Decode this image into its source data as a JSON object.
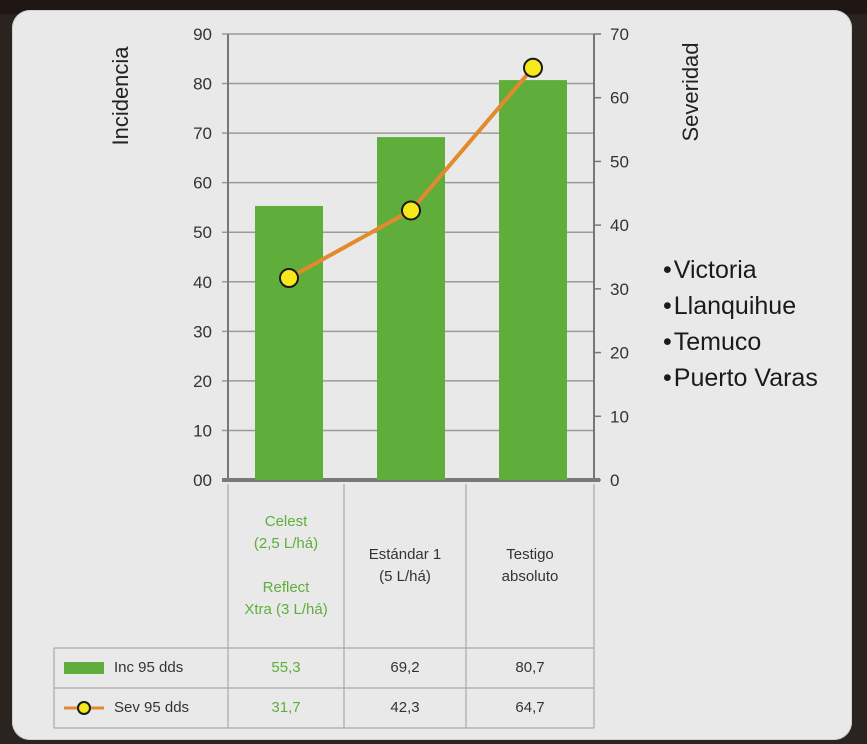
{
  "chart_data": {
    "type": "bar",
    "categories": [
      [
        "Celest",
        "(2,5 L/há)",
        "",
        "Reflect",
        "Xtra (3 L/há)"
      ],
      [
        "Estándar 1",
        "(5 L/há)"
      ],
      [
        "Testigo",
        "absoluto"
      ]
    ],
    "ylabel": "Incidencia",
    "y2label": "Severidad",
    "ylim": [
      0,
      90
    ],
    "y2lim": [
      0,
      70
    ],
    "yticks": [
      "00",
      "10",
      "20",
      "30",
      "40",
      "50",
      "60",
      "70",
      "80",
      "90"
    ],
    "y2ticks": [
      "0",
      "10",
      "20",
      "30",
      "40",
      "50",
      "60",
      "70"
    ],
    "grid": true,
    "series": [
      {
        "name": "Inc 95 dds",
        "type": "bar",
        "axis": "left",
        "color": "#5fae3b",
        "values": [
          55.3,
          69.2,
          80.7
        ],
        "labels": [
          "55,3",
          "69,2",
          "80,7"
        ]
      },
      {
        "name": "Sev 95 dds",
        "type": "line",
        "axis": "right",
        "color": "#e28a2e",
        "marker_color": "#f7e81c",
        "values": [
          31.7,
          42.3,
          64.7
        ],
        "labels": [
          "31,7",
          "42,3",
          "64,7"
        ]
      }
    ],
    "annotations": [
      "Victoria",
      "Llanquihue",
      "Temuco",
      "Puerto Varas"
    ]
  }
}
